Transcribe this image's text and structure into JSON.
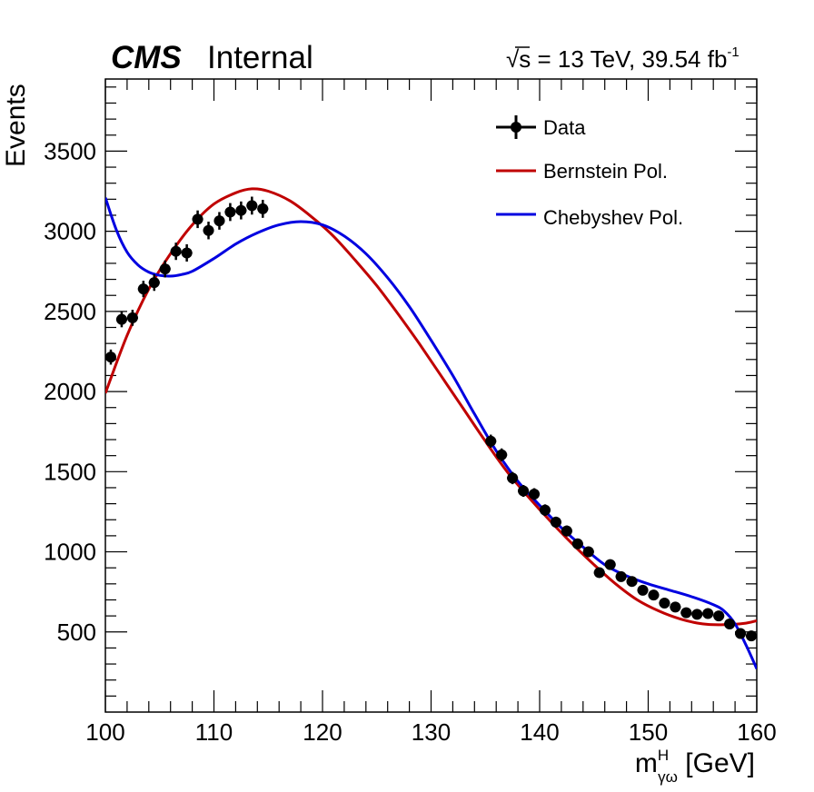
{
  "header": {
    "experiment": "CMS",
    "status": "Internal",
    "lumi_sqrt": "√",
    "lumi_s": "s",
    "lumi_rest": " = 13 TeV, 39.54 fb",
    "lumi_sup": "-1"
  },
  "chart_data": {
    "type": "scatter",
    "xlabel_main": "m",
    "xlabel_sup": "H",
    "xlabel_sub": "γω",
    "xlabel_unit": " [GeV]",
    "ylabel": "Events",
    "xlim": [
      100,
      160
    ],
    "ylim": [
      0,
      3950
    ],
    "x_ticks": [
      100,
      110,
      120,
      130,
      140,
      150,
      160
    ],
    "y_ticks": [
      500,
      1000,
      1500,
      2000,
      2500,
      3000,
      3500
    ],
    "legend": {
      "position": "top-right"
    },
    "series": [
      {
        "name": "Data",
        "kind": "points",
        "color": "#000000",
        "x": [
          100.5,
          101.5,
          102.5,
          103.5,
          104.5,
          105.5,
          106.5,
          107.5,
          108.5,
          109.5,
          110.5,
          111.5,
          112.5,
          113.5,
          114.5,
          135.5,
          136.5,
          137.5,
          138.5,
          139.5,
          140.5,
          141.5,
          142.5,
          143.5,
          144.5,
          145.5,
          146.5,
          147.5,
          148.5,
          149.5,
          150.5,
          151.5,
          152.5,
          153.5,
          154.5,
          155.5,
          156.5,
          157.5,
          158.5,
          159.5
        ],
        "y": [
          2215,
          2450,
          2460,
          2640,
          2680,
          2765,
          2875,
          2865,
          3075,
          3005,
          3065,
          3120,
          3130,
          3160,
          3140,
          1690,
          1605,
          1460,
          1380,
          1360,
          1260,
          1185,
          1130,
          1050,
          1000,
          870,
          920,
          845,
          815,
          760,
          730,
          680,
          655,
          620,
          610,
          615,
          600,
          550,
          490,
          475
        ],
        "yerr": [
          47,
          49,
          50,
          51,
          52,
          53,
          54,
          54,
          55,
          55,
          55,
          56,
          56,
          56,
          56,
          41,
          40,
          38,
          37,
          37,
          36,
          34,
          34,
          32,
          32,
          30,
          30,
          29,
          29,
          28,
          27,
          26,
          26,
          25,
          25,
          25,
          25,
          23,
          22,
          22
        ]
      },
      {
        "name": "Bernstein Pol.",
        "kind": "line",
        "color": "#c00000",
        "x": [
          100,
          102,
          104,
          106,
          108,
          110,
          112,
          113.5,
          115,
          117,
          119,
          121,
          123,
          125,
          127,
          129,
          131,
          133,
          135,
          137,
          139,
          141,
          143,
          145,
          147,
          149,
          151,
          153,
          155,
          157,
          159,
          160
        ],
        "y": [
          1990,
          2350,
          2640,
          2860,
          3040,
          3170,
          3240,
          3265,
          3250,
          3190,
          3090,
          2970,
          2820,
          2660,
          2480,
          2290,
          2090,
          1890,
          1690,
          1500,
          1340,
          1190,
          1050,
          920,
          800,
          700,
          630,
          580,
          550,
          545,
          555,
          570
        ]
      },
      {
        "name": "Chebyshev Pol.",
        "kind": "line",
        "color": "#0000e0",
        "x": [
          100,
          101,
          102,
          103,
          104,
          105,
          106,
          107,
          108,
          110,
          112,
          114,
          116,
          118,
          120,
          122,
          124,
          126,
          128,
          130,
          132,
          134,
          136,
          138,
          140,
          142,
          144,
          146,
          148,
          150,
          152,
          154,
          156,
          157,
          158,
          159,
          160
        ],
        "y": [
          3210,
          3010,
          2870,
          2790,
          2745,
          2725,
          2720,
          2730,
          2750,
          2830,
          2920,
          2990,
          3040,
          3060,
          3040,
          2970,
          2860,
          2710,
          2530,
          2320,
          2100,
          1860,
          1630,
          1440,
          1290,
          1150,
          1030,
          920,
          850,
          800,
          760,
          720,
          670,
          630,
          550,
          420,
          270
        ]
      }
    ]
  }
}
